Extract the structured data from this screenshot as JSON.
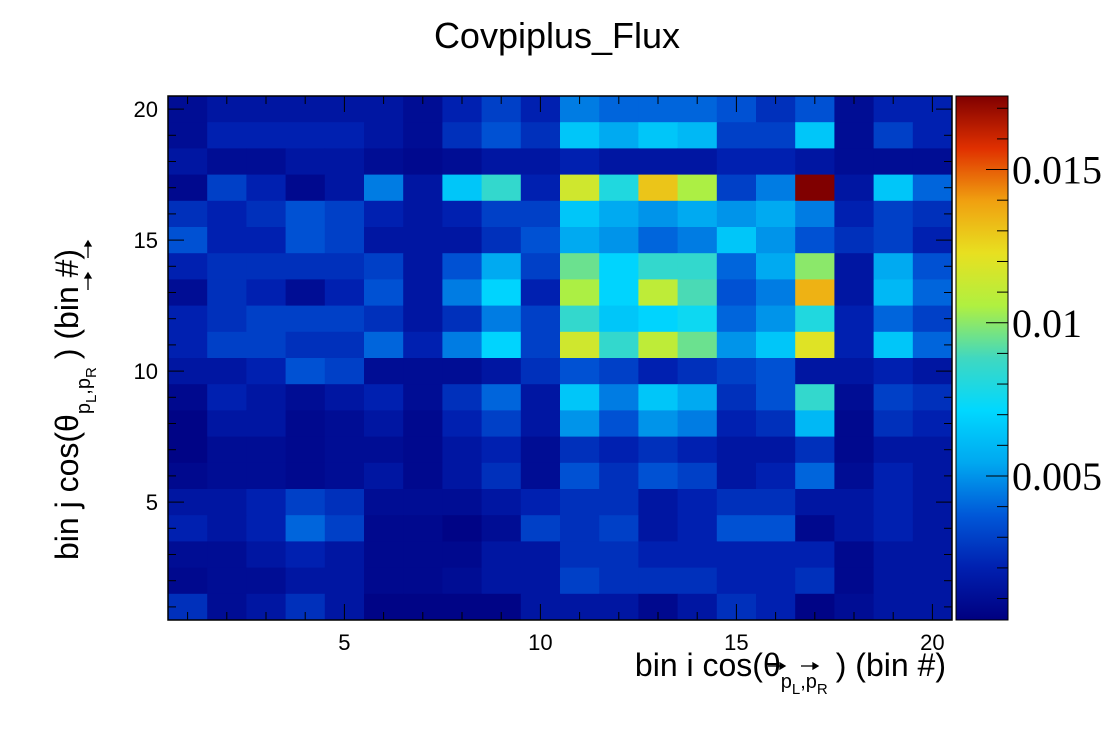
{
  "chart_data": {
    "type": "heatmap",
    "title": "Covpiplus_Flux",
    "xlabel": {
      "main": "bin i cos(θ",
      "sub_p1": "p",
      "sub_p1_index": "L",
      "comma": ",",
      "sub_p2": "p",
      "sub_p2_index": "R",
      "tail": ") (bin #)"
    },
    "ylabel": {
      "main": "bin j cos(θ",
      "sub_p1": "p",
      "sub_p1_index": "L",
      "comma": ",",
      "sub_p2": "p",
      "sub_p2_index": "R",
      "tail": ") (bin #)"
    },
    "x_range": [
      0.5,
      20.5
    ],
    "y_range": [
      0.5,
      20.5
    ],
    "x_ticks": [
      "5",
      "10",
      "15",
      "20"
    ],
    "y_ticks": [
      "5",
      "10",
      "15",
      "20"
    ],
    "x_tick_values": [
      5,
      10,
      15,
      20
    ],
    "y_tick_values": [
      5,
      10,
      15,
      20
    ],
    "z_range": [
      0.0003,
      0.0174
    ],
    "z_ticks": [
      "0.005",
      "0.01",
      "0.015"
    ],
    "z_tick_values": [
      0.005,
      0.01,
      0.015
    ],
    "colormap": [
      "#000080",
      "#0020b0",
      "#0058d8",
      "#00a8f0",
      "#00d8ff",
      "#40d8c0",
      "#b0f040",
      "#e8e020",
      "#f0a010",
      "#e03000",
      "#800000"
    ],
    "rows_top_to_bottom_y20_to_y1": [
      [
        0.001,
        0.0015,
        0.0015,
        0.0015,
        0.0015,
        0.0015,
        0.001,
        0.002,
        0.003,
        0.002,
        0.0045,
        0.004,
        0.004,
        0.004,
        0.0035,
        0.0025,
        0.0035,
        0.001,
        0.002,
        0.002
      ],
      [
        0.001,
        0.002,
        0.002,
        0.002,
        0.002,
        0.0015,
        0.001,
        0.0025,
        0.0035,
        0.0025,
        0.0065,
        0.0055,
        0.0065,
        0.006,
        0.003,
        0.003,
        0.0065,
        0.001,
        0.003,
        0.002
      ],
      [
        0.0015,
        0.001,
        0.001,
        0.0015,
        0.0015,
        0.001,
        0.0008,
        0.001,
        0.0015,
        0.0015,
        0.002,
        0.0015,
        0.0015,
        0.0015,
        0.002,
        0.002,
        0.0015,
        0.001,
        0.001,
        0.001
      ],
      [
        0.0008,
        0.003,
        0.002,
        0.0008,
        0.0015,
        0.0045,
        0.0015,
        0.0065,
        0.0085,
        0.002,
        0.0115,
        0.008,
        0.013,
        0.0105,
        0.003,
        0.0045,
        0.0174,
        0.0015,
        0.0065,
        0.004
      ],
      [
        0.0025,
        0.002,
        0.0025,
        0.0035,
        0.003,
        0.002,
        0.0015,
        0.002,
        0.003,
        0.003,
        0.0065,
        0.0055,
        0.005,
        0.0055,
        0.005,
        0.0055,
        0.0045,
        0.002,
        0.003,
        0.0025
      ],
      [
        0.0035,
        0.002,
        0.002,
        0.0035,
        0.003,
        0.0015,
        0.0015,
        0.0015,
        0.0025,
        0.0035,
        0.0055,
        0.005,
        0.004,
        0.0045,
        0.0065,
        0.005,
        0.0035,
        0.0025,
        0.003,
        0.002
      ],
      [
        0.002,
        0.0025,
        0.0025,
        0.0025,
        0.0025,
        0.003,
        0.0015,
        0.0035,
        0.0055,
        0.003,
        0.0095,
        0.007,
        0.0085,
        0.0085,
        0.004,
        0.0055,
        0.01,
        0.0015,
        0.0055,
        0.0035
      ],
      [
        0.001,
        0.0025,
        0.002,
        0.001,
        0.002,
        0.0035,
        0.0015,
        0.0045,
        0.007,
        0.002,
        0.0105,
        0.007,
        0.011,
        0.009,
        0.0035,
        0.0045,
        0.0135,
        0.0015,
        0.006,
        0.004
      ],
      [
        0.002,
        0.0025,
        0.003,
        0.003,
        0.003,
        0.0025,
        0.0015,
        0.0025,
        0.0045,
        0.003,
        0.0085,
        0.0065,
        0.007,
        0.0075,
        0.004,
        0.005,
        0.008,
        0.002,
        0.004,
        0.003
      ],
      [
        0.002,
        0.003,
        0.003,
        0.0025,
        0.0025,
        0.004,
        0.002,
        0.0045,
        0.007,
        0.003,
        0.0115,
        0.0085,
        0.011,
        0.0095,
        0.005,
        0.0065,
        0.012,
        0.002,
        0.0065,
        0.004
      ],
      [
        0.0015,
        0.0015,
        0.002,
        0.0035,
        0.003,
        0.001,
        0.001,
        0.001,
        0.0015,
        0.0025,
        0.0035,
        0.003,
        0.002,
        0.0025,
        0.003,
        0.0035,
        0.0015,
        0.0015,
        0.002,
        0.0015
      ],
      [
        0.0008,
        0.002,
        0.0015,
        0.001,
        0.0015,
        0.002,
        0.001,
        0.0025,
        0.004,
        0.0015,
        0.0065,
        0.0045,
        0.0065,
        0.0055,
        0.0025,
        0.0035,
        0.0085,
        0.001,
        0.003,
        0.0025
      ],
      [
        0.0005,
        0.0015,
        0.0015,
        0.0008,
        0.001,
        0.0015,
        0.0008,
        0.002,
        0.003,
        0.0015,
        0.005,
        0.0035,
        0.005,
        0.0045,
        0.002,
        0.0025,
        0.006,
        0.0008,
        0.0025,
        0.002
      ],
      [
        0.0005,
        0.001,
        0.001,
        0.0008,
        0.001,
        0.001,
        0.0008,
        0.0015,
        0.002,
        0.001,
        0.0025,
        0.002,
        0.0025,
        0.002,
        0.0015,
        0.0015,
        0.0025,
        0.0008,
        0.0015,
        0.0015
      ],
      [
        0.0008,
        0.001,
        0.001,
        0.0008,
        0.001,
        0.0015,
        0.0008,
        0.0015,
        0.0025,
        0.001,
        0.0035,
        0.0025,
        0.0035,
        0.003,
        0.0015,
        0.002,
        0.004,
        0.001,
        0.002,
        0.0015
      ],
      [
        0.0015,
        0.0015,
        0.002,
        0.003,
        0.0025,
        0.001,
        0.001,
        0.001,
        0.0015,
        0.002,
        0.0025,
        0.0025,
        0.0015,
        0.002,
        0.0025,
        0.0025,
        0.0015,
        0.0015,
        0.002,
        0.0015
      ],
      [
        0.002,
        0.0015,
        0.002,
        0.004,
        0.003,
        0.0008,
        0.0008,
        0.0005,
        0.001,
        0.003,
        0.0025,
        0.003,
        0.0015,
        0.002,
        0.0035,
        0.0035,
        0.0008,
        0.0015,
        0.002,
        0.0015
      ],
      [
        0.001,
        0.001,
        0.0015,
        0.002,
        0.0015,
        0.0008,
        0.0008,
        0.0008,
        0.0015,
        0.0015,
        0.0025,
        0.0025,
        0.002,
        0.002,
        0.002,
        0.002,
        0.002,
        0.0008,
        0.0015,
        0.0015
      ],
      [
        0.0008,
        0.001,
        0.001,
        0.0015,
        0.0015,
        0.0008,
        0.0008,
        0.001,
        0.0015,
        0.0015,
        0.003,
        0.0025,
        0.0025,
        0.0025,
        0.002,
        0.002,
        0.0025,
        0.0008,
        0.0015,
        0.0015
      ],
      [
        0.0025,
        0.001,
        0.0015,
        0.0025,
        0.0015,
        0.0005,
        0.0005,
        0.0005,
        0.0005,
        0.0015,
        0.0015,
        0.0015,
        0.0008,
        0.0015,
        0.0025,
        0.002,
        0.0005,
        0.001,
        0.0015,
        0.0015
      ]
    ]
  }
}
